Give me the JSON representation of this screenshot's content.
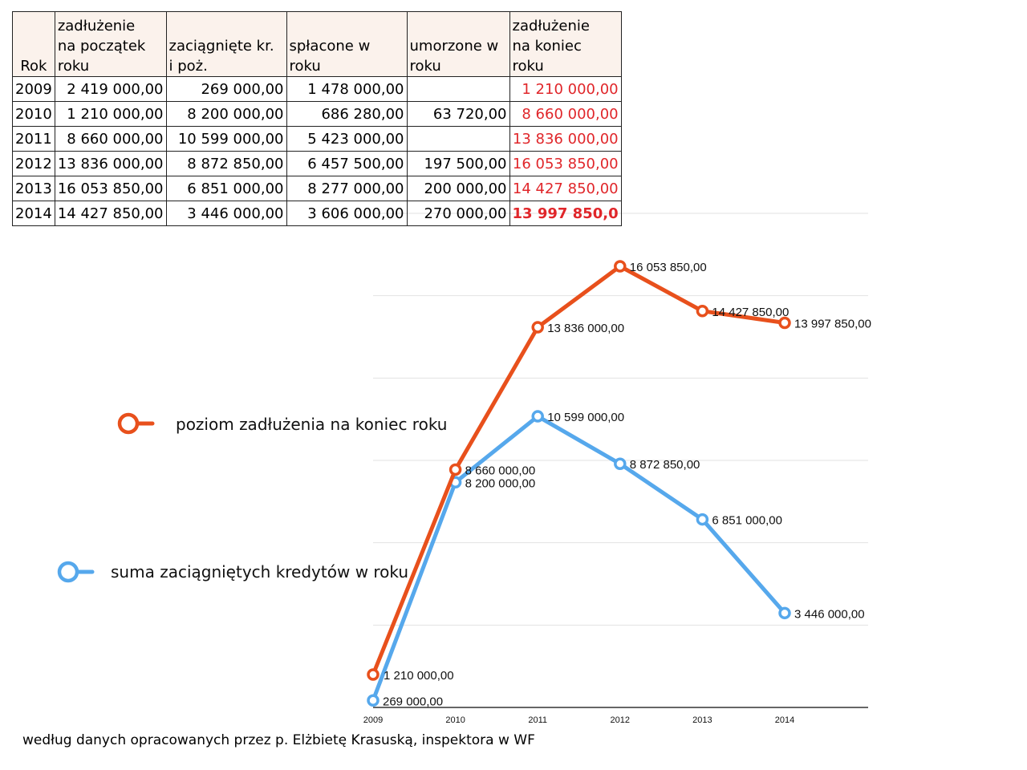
{
  "table": {
    "headers": [
      "Rok",
      "zadłużenie\nna początek\nroku",
      "zaciągnięte kr.\ni poż.",
      "spłacone w\nroku",
      "umorzone w\nroku",
      "zadłużenie\nna koniec\nroku"
    ],
    "rows": [
      [
        "2009",
        "2 419 000,00",
        "269 000,00",
        "1 478 000,00",
        "",
        "1 210 000,00"
      ],
      [
        "2010",
        "1 210 000,00",
        "8 200 000,00",
        "686 280,00",
        "63 720,00",
        "8 660 000,00"
      ],
      [
        "2011",
        "8 660 000,00",
        "10 599 000,00",
        "5 423 000,00",
        "",
        "13 836 000,00"
      ],
      [
        "2012",
        "13 836 000,00",
        "8 872 850,00",
        "6 457 500,00",
        "197 500,00",
        "16 053 850,00"
      ],
      [
        "2013",
        "16 053 850,00",
        "6 851 000,00",
        "8 277 000,00",
        "200 000,00",
        "14 427 850,00"
      ],
      [
        "2014",
        "14 427 850,00",
        "3 446 000,00",
        "3 606 000,00",
        "270 000,00",
        "13 997 850,0"
      ]
    ]
  },
  "chart_data": {
    "type": "line",
    "x": [
      "2009",
      "2010",
      "2011",
      "2012",
      "2013",
      "2014"
    ],
    "ylim": [
      0,
      16053850
    ],
    "grid": true,
    "series": [
      {
        "name": "poziom zadłużenia na koniec roku",
        "color": "#e8501c",
        "values": [
          1210000,
          8660000,
          13836000,
          16053850,
          14427850,
          13997850
        ],
        "labels": [
          "1 210 000,00",
          "8 660 000,00",
          "13 836 000,00",
          "16 053 850,00",
          "14 427 850,00",
          "13 997 850,00"
        ]
      },
      {
        "name": "suma zaciągniętych kredytów w roku",
        "color": "#56a8ec",
        "values": [
          269000,
          8200000,
          10599000,
          8872850,
          6851000,
          3446000
        ],
        "labels": [
          "269 000,00",
          "8 200 000,00",
          "10 599 000,00",
          "8 872 850,00",
          "6 851 000,00",
          "3 446 000,00"
        ]
      }
    ]
  },
  "source_note": "według danych opracowanych przez p. Elżbietę Krasuską, inspektora w WF"
}
